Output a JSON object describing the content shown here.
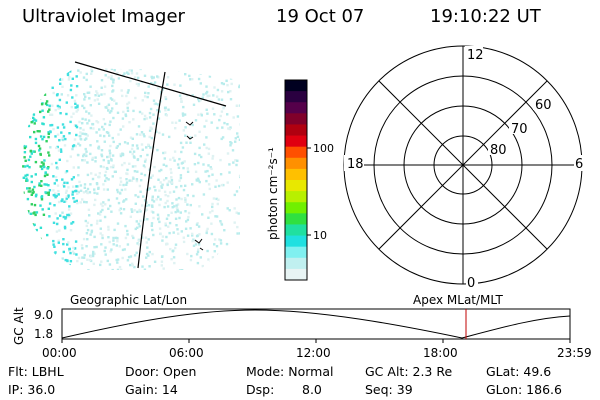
{
  "header": {
    "title": "Ultraviolet Imager",
    "date": "19 Oct 07",
    "time": "19:10:22 UT"
  },
  "colorbar": {
    "unit_label": "photon cm⁻²s⁻¹",
    "ticks": [
      "100",
      "10"
    ],
    "colors": [
      "#000020",
      "#2a0040",
      "#55004a",
      "#80002a",
      "#b00010",
      "#e00010",
      "#ff5000",
      "#ff9000",
      "#ffc000",
      "#e8e800",
      "#b8f000",
      "#70f000",
      "#30e040",
      "#20e0a0",
      "#20e0e0",
      "#80f0f0",
      "#c0f0f0",
      "#e8f4f4"
    ]
  },
  "polar_grid": {
    "mlt_labels": {
      "top": "12",
      "left": "18",
      "right": "6",
      "bottom": "0"
    },
    "lat_labels": [
      "60",
      "70",
      "80"
    ]
  },
  "timeline": {
    "left_title": "Geographic Lat/Lon",
    "right_title": "Apex MLat/MLT",
    "y_label": "GC Alt",
    "y_ticks": [
      "9.0",
      "1.8"
    ],
    "x_ticks": [
      "00:00",
      "06:00",
      "12:00",
      "18:00",
      "23:59"
    ],
    "marker_color": "#c00000"
  },
  "info": {
    "flt": "Flt: LBHL",
    "ip": "IP: 36.0",
    "door": "Door: Open",
    "gain": "Gain: 14",
    "mode": "Mode: Normal",
    "dsp_label": "Dsp:",
    "dsp_value": "8.0",
    "gcalt": "GC Alt: 2.3 Re",
    "seq": "Seq: 39",
    "glat": "GLat: 49.6",
    "glon": "GLon: 186.6"
  }
}
